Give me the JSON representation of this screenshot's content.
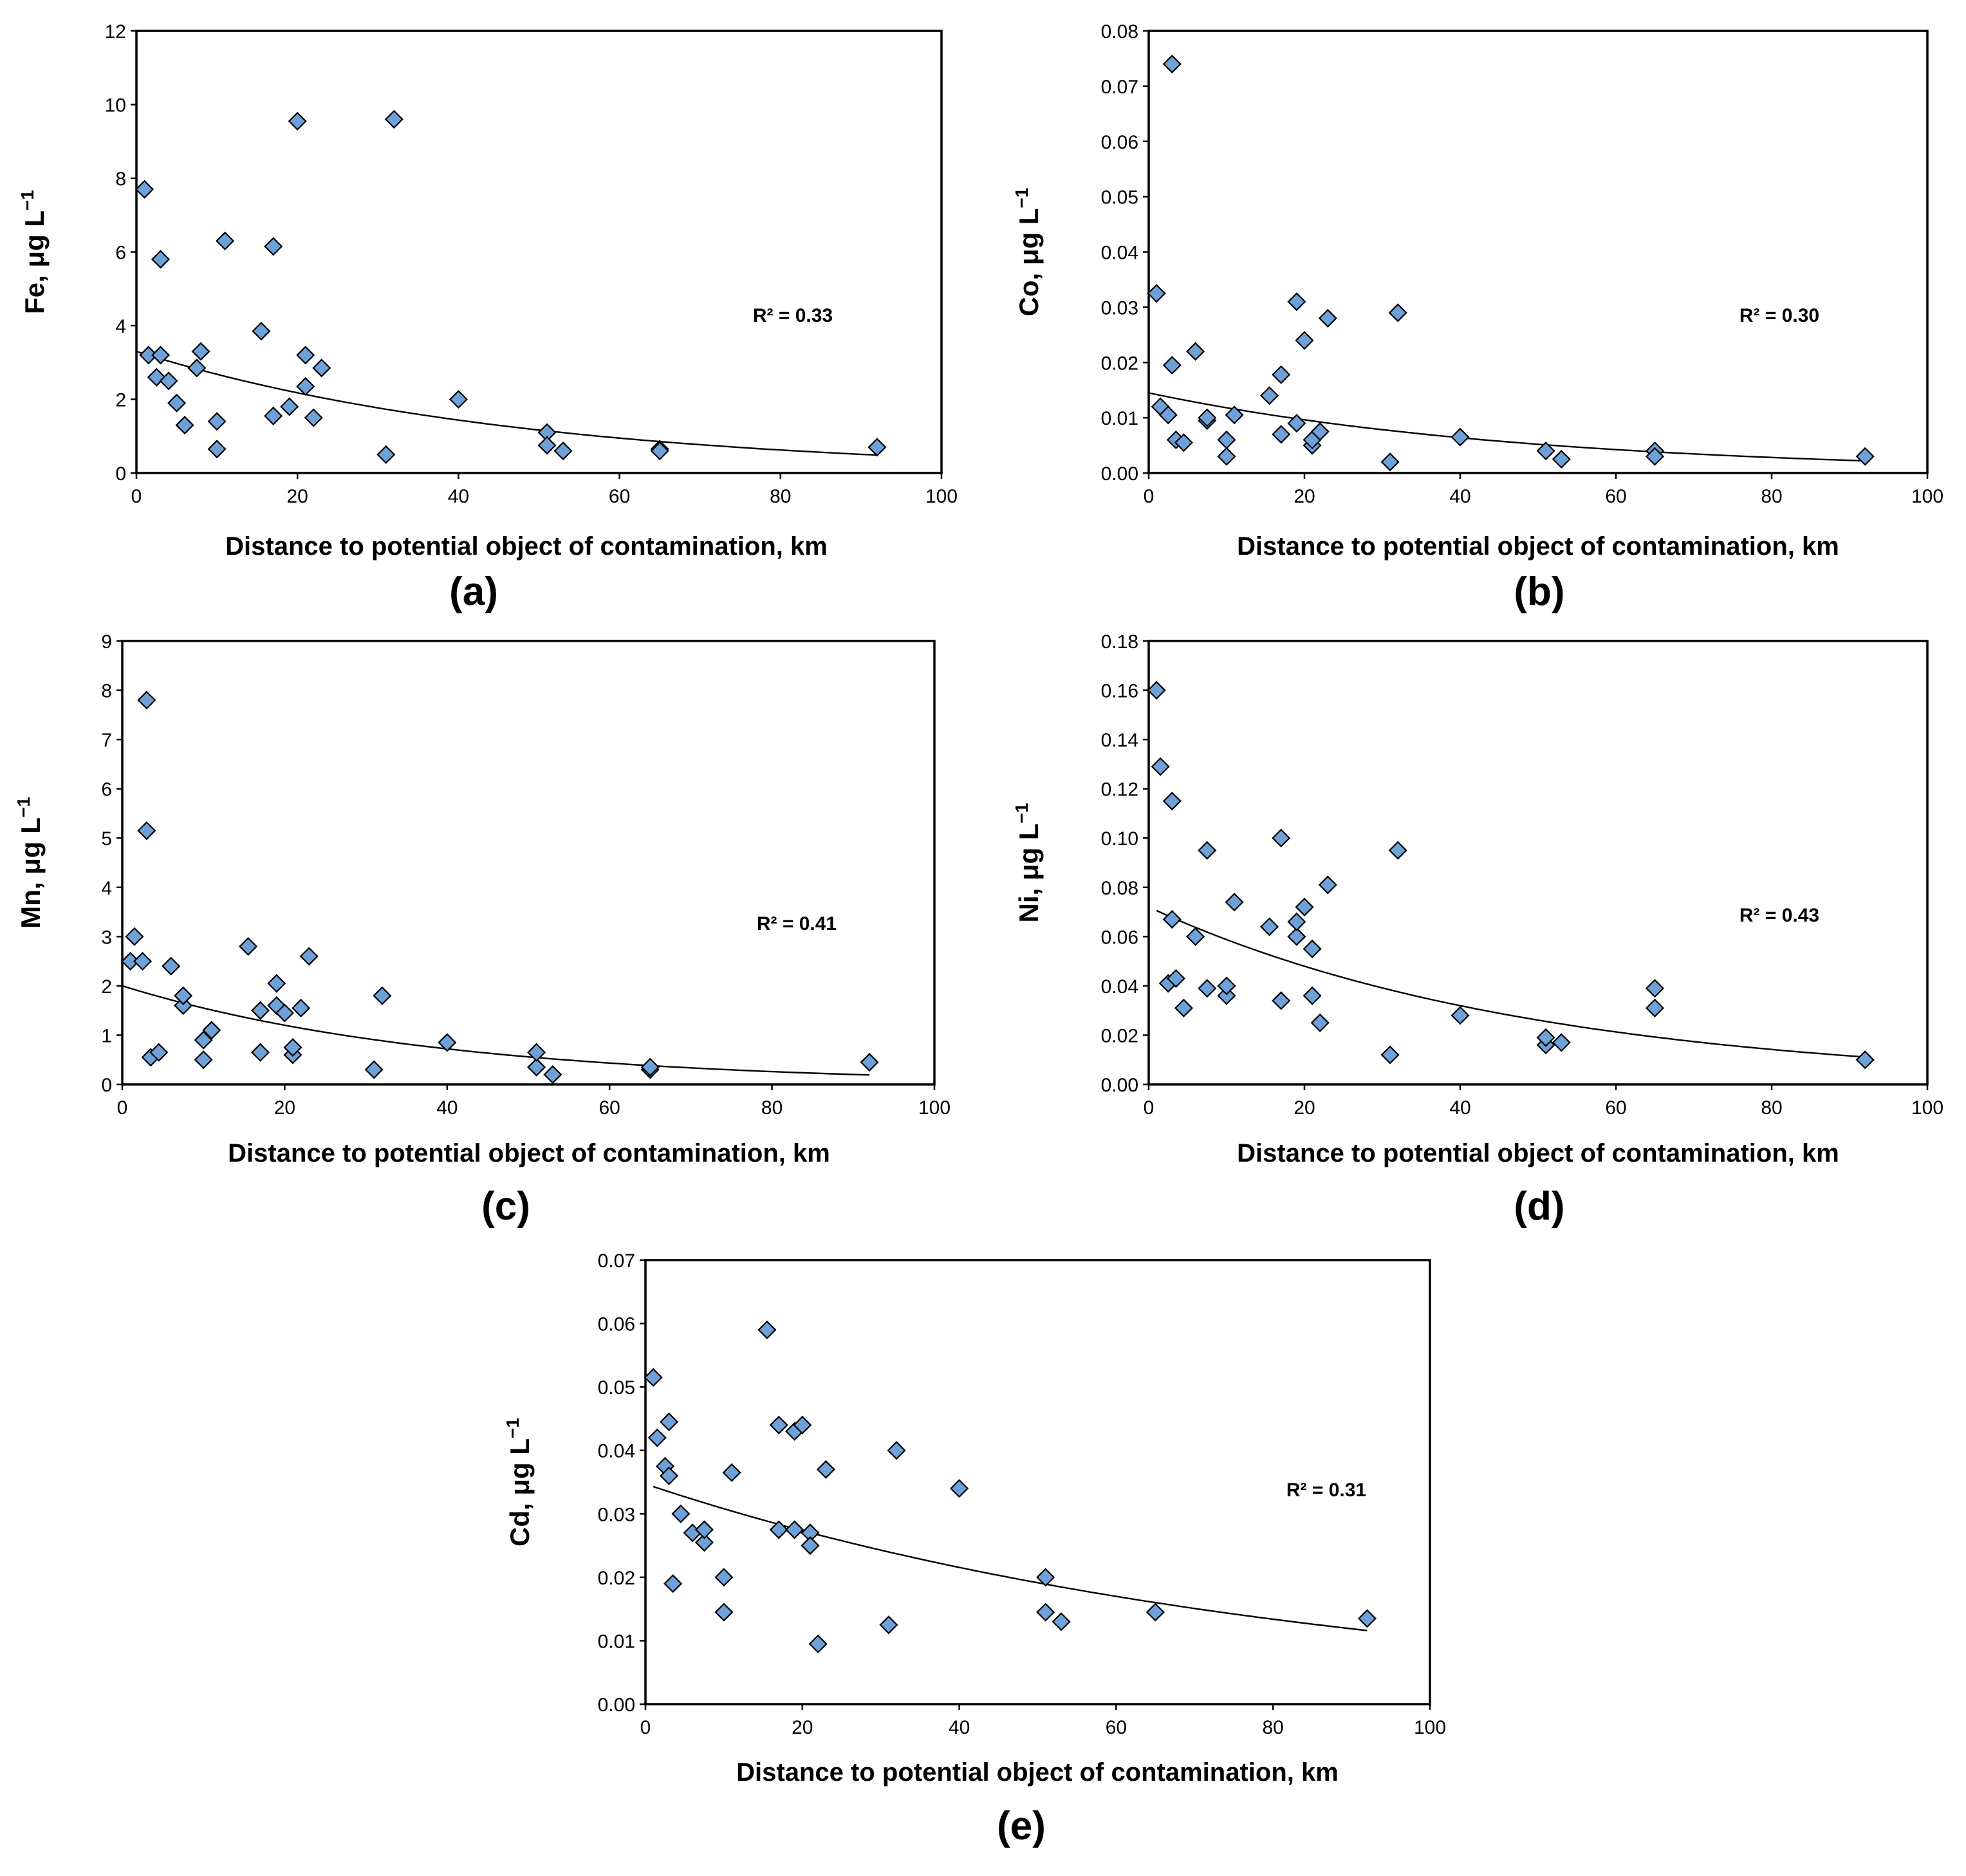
{
  "figure": {
    "x_axis_label": "Distance to potential object of contamination, km"
  },
  "chart_data": [
    {
      "type": "scatter",
      "id": "a",
      "panel_label": "(a)",
      "ylabel_element": "Fe",
      "ylabel_unit": ", μg L",
      "ylabel_sup": "−1",
      "r2_label": "R² = 0.33",
      "xlabel": "Distance to potential object of contamination, km",
      "xlim": [
        0,
        100
      ],
      "xticks": [
        "0",
        "20",
        "40",
        "60",
        "80",
        "100"
      ],
      "ylim": [
        0,
        12
      ],
      "yticks": [
        "0",
        "2",
        "4",
        "6",
        "8",
        "10",
        "12"
      ],
      "trend": {
        "type": "exponential",
        "a": 3.3,
        "b": -0.0208,
        "x_range": [
          0,
          92
        ]
      },
      "points": [
        [
          1,
          7.7
        ],
        [
          1.5,
          3.2
        ],
        [
          2.5,
          2.6
        ],
        [
          3,
          3.2
        ],
        [
          3,
          5.8
        ],
        [
          4,
          2.5
        ],
        [
          5,
          1.9
        ],
        [
          6,
          1.3
        ],
        [
          7.5,
          2.85
        ],
        [
          8,
          3.3
        ],
        [
          10,
          1.4
        ],
        [
          10,
          0.65
        ],
        [
          11,
          6.3
        ],
        [
          15.5,
          3.85
        ],
        [
          17,
          1.55
        ],
        [
          17,
          6.15
        ],
        [
          19,
          1.8
        ],
        [
          20,
          9.55
        ],
        [
          21,
          3.2
        ],
        [
          21,
          2.35
        ],
        [
          22,
          1.5
        ],
        [
          23,
          2.85
        ],
        [
          31,
          0.5
        ],
        [
          32,
          9.6
        ],
        [
          40,
          2.0
        ],
        [
          51,
          1.1
        ],
        [
          51,
          0.75
        ],
        [
          53,
          0.6
        ],
        [
          65,
          0.65
        ],
        [
          65,
          0.6
        ],
        [
          92,
          0.7
        ]
      ]
    },
    {
      "type": "scatter",
      "id": "b",
      "panel_label": "(b)",
      "ylabel_element": "Co",
      "ylabel_unit": ", μg L",
      "ylabel_sup": "−1",
      "r2_label": "R² = 0.30",
      "xlabel": "Distance to potential object of contamination, km",
      "xlim": [
        0,
        100
      ],
      "xticks": [
        "0",
        "20",
        "40",
        "60",
        "80",
        "100"
      ],
      "ylim": [
        0,
        0.08
      ],
      "yticks": [
        "0.00",
        "0.01",
        "0.02",
        "0.03",
        "0.04",
        "0.05",
        "0.06",
        "0.07",
        "0.08"
      ],
      "trend": {
        "type": "exponential",
        "a": 0.0145,
        "b": -0.0205,
        "x_range": [
          0,
          92
        ]
      },
      "points": [
        [
          1,
          0.0325
        ],
        [
          1.5,
          0.012
        ],
        [
          2.5,
          0.0105
        ],
        [
          3,
          0.0195
        ],
        [
          3,
          0.074
        ],
        [
          3.5,
          0.006
        ],
        [
          4.5,
          0.0055
        ],
        [
          6,
          0.022
        ],
        [
          7.5,
          0.0095
        ],
        [
          7.5,
          0.01
        ],
        [
          10,
          0.003
        ],
        [
          10,
          0.006
        ],
        [
          11,
          0.0105
        ],
        [
          15.5,
          0.014
        ],
        [
          17,
          0.007
        ],
        [
          17,
          0.0178
        ],
        [
          19,
          0.009
        ],
        [
          19,
          0.031
        ],
        [
          20,
          0.024
        ],
        [
          21,
          0.005
        ],
        [
          21,
          0.006
        ],
        [
          22,
          0.0075
        ],
        [
          23,
          0.028
        ],
        [
          31,
          0.002
        ],
        [
          32,
          0.029
        ],
        [
          40,
          0.0065
        ],
        [
          51,
          0.004
        ],
        [
          53,
          0.0025
        ],
        [
          65,
          0.004
        ],
        [
          65,
          0.003
        ],
        [
          92,
          0.003
        ]
      ]
    },
    {
      "type": "scatter",
      "id": "c",
      "panel_label": "(c)",
      "ylabel_element": "Mn",
      "ylabel_unit": ", μg L",
      "ylabel_sup": "−1",
      "r2_label": "R² = 0.41",
      "xlabel": "Distance to potential object of contamination, km",
      "xlim": [
        0,
        100
      ],
      "xticks": [
        "0",
        "20",
        "40",
        "60",
        "80",
        "100"
      ],
      "ylim": [
        0,
        9
      ],
      "yticks": [
        "0",
        "1",
        "2",
        "3",
        "4",
        "5",
        "6",
        "7",
        "8",
        "9"
      ],
      "trend": {
        "type": "exponential",
        "a": 2.0,
        "b": -0.0255,
        "x_range": [
          0,
          92
        ]
      },
      "points": [
        [
          1,
          2.5
        ],
        [
          1.5,
          3.0
        ],
        [
          2.5,
          2.5
        ],
        [
          3,
          7.8
        ],
        [
          3,
          5.15
        ],
        [
          3.5,
          0.55
        ],
        [
          4.5,
          0.65
        ],
        [
          6,
          2.4
        ],
        [
          7.5,
          1.6
        ],
        [
          7.5,
          1.8
        ],
        [
          10,
          0.5
        ],
        [
          10,
          0.9
        ],
        [
          11,
          1.1
        ],
        [
          15.5,
          2.8
        ],
        [
          17,
          0.65
        ],
        [
          17,
          1.5
        ],
        [
          19,
          1.6
        ],
        [
          19,
          2.05
        ],
        [
          20,
          1.45
        ],
        [
          21,
          0.6
        ],
        [
          21,
          0.75
        ],
        [
          22,
          1.55
        ],
        [
          23,
          2.6
        ],
        [
          31,
          0.3
        ],
        [
          32,
          1.8
        ],
        [
          40,
          0.85
        ],
        [
          51,
          0.35
        ],
        [
          51,
          0.65
        ],
        [
          53,
          0.2
        ],
        [
          65,
          0.3
        ],
        [
          65,
          0.35
        ],
        [
          92,
          0.45
        ]
      ]
    },
    {
      "type": "scatter",
      "id": "d",
      "panel_label": "(d)",
      "ylabel_element": "Ni",
      "ylabel_unit": ", μg L",
      "ylabel_sup": "−1",
      "r2_label": "R² = 0.43",
      "xlabel": "Distance to potential object of contamination, km",
      "xlim": [
        0,
        100
      ],
      "xticks": [
        "0",
        "20",
        "40",
        "60",
        "80",
        "100"
      ],
      "ylim": [
        0,
        0.18
      ],
      "yticks": [
        "0.00",
        "0.02",
        "0.04",
        "0.06",
        "0.08",
        "0.10",
        "0.12",
        "0.14",
        "0.16",
        "0.18"
      ],
      "trend": {
        "type": "exponential",
        "a": 0.072,
        "b": -0.0203,
        "x_range": [
          1,
          92
        ]
      },
      "points": [
        [
          1,
          0.16
        ],
        [
          1.5,
          0.129
        ],
        [
          2.5,
          0.041
        ],
        [
          3,
          0.115
        ],
        [
          3,
          0.067
        ],
        [
          3.5,
          0.043
        ],
        [
          4.5,
          0.031
        ],
        [
          6,
          0.06
        ],
        [
          7.5,
          0.039
        ],
        [
          7.5,
          0.095
        ],
        [
          10,
          0.036
        ],
        [
          10,
          0.04
        ],
        [
          11,
          0.074
        ],
        [
          15.5,
          0.064
        ],
        [
          17,
          0.034
        ],
        [
          17,
          0.1
        ],
        [
          19,
          0.06
        ],
        [
          19,
          0.066
        ],
        [
          20,
          0.072
        ],
        [
          21,
          0.055
        ],
        [
          21,
          0.036
        ],
        [
          22,
          0.025
        ],
        [
          23,
          0.081
        ],
        [
          31,
          0.012
        ],
        [
          32,
          0.095
        ],
        [
          40,
          0.028
        ],
        [
          51,
          0.016
        ],
        [
          51,
          0.019
        ],
        [
          53,
          0.017
        ],
        [
          65,
          0.031
        ],
        [
          65,
          0.039
        ],
        [
          92,
          0.01
        ]
      ]
    },
    {
      "type": "scatter",
      "id": "e",
      "panel_label": "(e)",
      "ylabel_element": "Cd",
      "ylabel_unit": ", μg L",
      "ylabel_sup": "−1",
      "r2_label": "R² = 0.31",
      "xlabel": "Distance to potential object of contamination, km",
      "xlim": [
        0,
        100
      ],
      "xticks": [
        "0",
        "20",
        "40",
        "60",
        "80",
        "100"
      ],
      "ylim": [
        0,
        0.07
      ],
      "yticks": [
        "0.00",
        "0.01",
        "0.02",
        "0.03",
        "0.04",
        "0.05",
        "0.06",
        "0.07"
      ],
      "trend": {
        "type": "exponential",
        "a": 0.0347,
        "b": -0.0119,
        "x_range": [
          1,
          92
        ]
      },
      "points": [
        [
          1,
          0.0515
        ],
        [
          1.5,
          0.042
        ],
        [
          2.5,
          0.0375
        ],
        [
          3,
          0.036
        ],
        [
          3,
          0.0445
        ],
        [
          3.5,
          0.019
        ],
        [
          4.5,
          0.03
        ],
        [
          6,
          0.027
        ],
        [
          7.5,
          0.0255
        ],
        [
          7.5,
          0.0275
        ],
        [
          10,
          0.0145
        ],
        [
          10,
          0.02
        ],
        [
          11,
          0.0365
        ],
        [
          15.5,
          0.059
        ],
        [
          17,
          0.0275
        ],
        [
          17,
          0.044
        ],
        [
          19,
          0.0275
        ],
        [
          19,
          0.043
        ],
        [
          20,
          0.044
        ],
        [
          21,
          0.027
        ],
        [
          21,
          0.025
        ],
        [
          22,
          0.0095
        ],
        [
          23,
          0.037
        ],
        [
          31,
          0.0125
        ],
        [
          32,
          0.04
        ],
        [
          40,
          0.034
        ],
        [
          51,
          0.02
        ],
        [
          51,
          0.0145
        ],
        [
          53,
          0.013
        ],
        [
          65,
          0.0145
        ],
        [
          92,
          0.0135
        ]
      ]
    }
  ]
}
